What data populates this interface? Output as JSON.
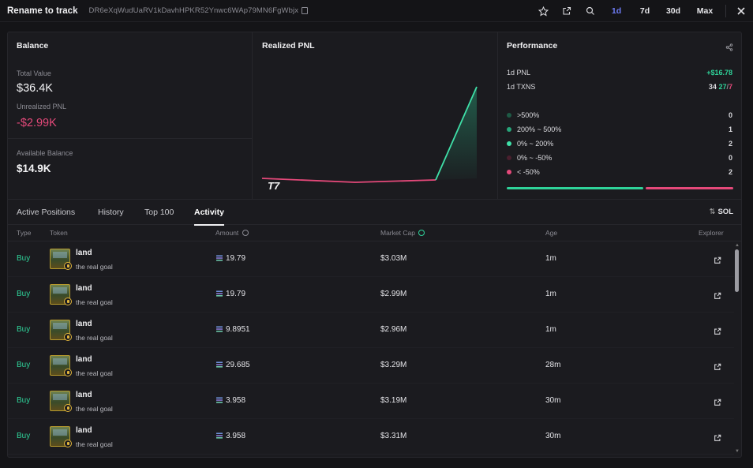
{
  "header": {
    "title": "Rename to track",
    "address": "DR6eXqWudUaRV1kDavhHPKR52Ynwc6WAp79MN6FgWbjx",
    "timeframes": [
      "1d",
      "7d",
      "30d",
      "Max"
    ],
    "active_timeframe": "1d"
  },
  "balance": {
    "title": "Balance",
    "total_value_label": "Total Value",
    "total_value": "$36.4K",
    "unrealized_label": "Unrealized PNL",
    "unrealized_value": "-$2.99K",
    "available_label": "Available Balance",
    "available_value": "$14.9K"
  },
  "realized_pnl": {
    "title": "Realized PNL",
    "watermark": "T7"
  },
  "performance": {
    "title": "Performance",
    "pnl_label": "1d PNL",
    "pnl_value": "+$16.78",
    "txns_label": "1d TXNS",
    "txns_total": "34",
    "txns_buys": "27",
    "txns_sep": "/",
    "txns_sells": "7",
    "buckets": [
      {
        "label": ">500%",
        "count": "0",
        "color": "#1e5a45"
      },
      {
        "label": "200% ~ 500%",
        "count": "1",
        "color": "#27a57a"
      },
      {
        "label": "0% ~ 200%",
        "count": "2",
        "color": "#3fe0a8"
      },
      {
        "label": "0% ~ -50%",
        "count": "0",
        "color": "#4a1f2e"
      },
      {
        "label": "< -50%",
        "count": "2",
        "color": "#e5497a"
      }
    ]
  },
  "tabs": {
    "items": [
      "Active Positions",
      "History",
      "Top 100",
      "Activity"
    ],
    "active": "Activity",
    "currency": "SOL"
  },
  "table": {
    "headers": {
      "type": "Type",
      "token": "Token",
      "amount": "Amount",
      "market_cap": "Market Cap",
      "age": "Age",
      "explorer": "Explorer"
    },
    "rows": [
      {
        "type": "Buy",
        "name": "land",
        "sub": "the real goal",
        "amount": "19.79",
        "mc": "$3.03M",
        "age": "1m"
      },
      {
        "type": "Buy",
        "name": "land",
        "sub": "the real goal",
        "amount": "19.79",
        "mc": "$2.99M",
        "age": "1m"
      },
      {
        "type": "Buy",
        "name": "land",
        "sub": "the real goal",
        "amount": "9.8951",
        "mc": "$2.96M",
        "age": "1m"
      },
      {
        "type": "Buy",
        "name": "land",
        "sub": "the real goal",
        "amount": "29.685",
        "mc": "$3.29M",
        "age": "28m"
      },
      {
        "type": "Buy",
        "name": "land",
        "sub": "the real goal",
        "amount": "3.958",
        "mc": "$3.19M",
        "age": "30m"
      },
      {
        "type": "Buy",
        "name": "land",
        "sub": "the real goal",
        "amount": "3.958",
        "mc": "$3.31M",
        "age": "30m"
      }
    ]
  }
}
